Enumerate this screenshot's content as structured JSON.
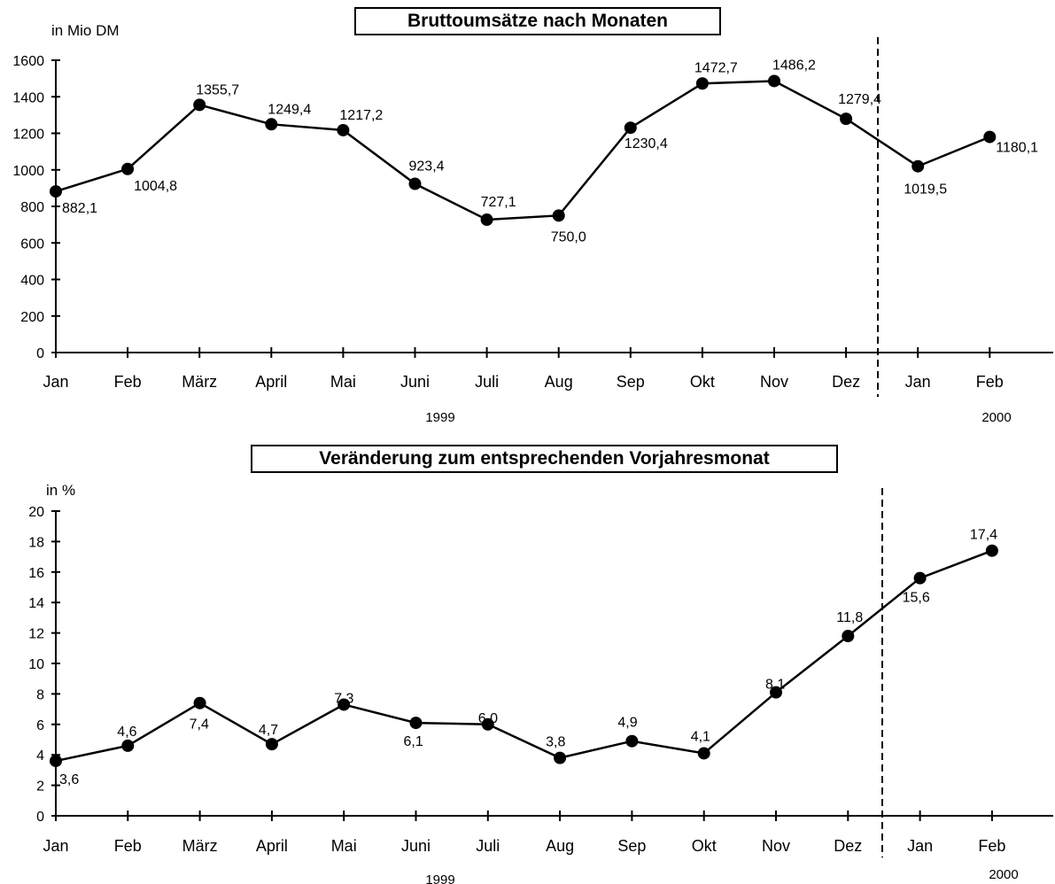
{
  "chart_data": [
    {
      "type": "line",
      "title": "Bruttoumsätze nach Monaten",
      "ylabel": "in Mio DM",
      "xlabel": "",
      "categories": [
        "Jan",
        "Feb",
        "März",
        "April",
        "Mai",
        "Juni",
        "Juli",
        "Aug",
        "Sep",
        "Okt",
        "Nov",
        "Dez",
        "Jan",
        "Feb"
      ],
      "year_labels": [
        "1999",
        "2000"
      ],
      "values": [
        882.1,
        1004.8,
        1355.7,
        1249.4,
        1217.2,
        923.4,
        727.1,
        750.0,
        1230.4,
        1472.7,
        1486.2,
        1279.4,
        1019.5,
        1180.1
      ],
      "value_labels": [
        "882,1",
        "1004,8",
        "1355,7",
        "1249,4",
        "1217,2",
        "923,4",
        "727,1",
        "750,0",
        "1230,4",
        "1472,7",
        "1486,2",
        "1279,4",
        "1019,5",
        "1180,1"
      ],
      "yticks": [
        "0",
        "200",
        "400",
        "600",
        "800",
        "1000",
        "1200",
        "1400",
        "1600"
      ],
      "ylim": [
        0,
        1600
      ],
      "grid": false,
      "legend": "none",
      "separator": "dashed line between Dez and Jan"
    },
    {
      "type": "line",
      "title": "Veränderung zum entsprechenden Vorjahresmonat",
      "ylabel": "in %",
      "xlabel": "",
      "categories": [
        "Jan",
        "Feb",
        "März",
        "April",
        "Mai",
        "Juni",
        "Juli",
        "Aug",
        "Sep",
        "Okt",
        "Nov",
        "Dez",
        "Jan",
        "Feb"
      ],
      "year_labels": [
        "1999",
        "2000"
      ],
      "values": [
        3.6,
        4.6,
        7.4,
        4.7,
        7.3,
        6.1,
        6.0,
        3.8,
        4.9,
        4.1,
        8.1,
        11.8,
        15.6,
        17.4
      ],
      "value_labels": [
        "3,6",
        "4,6",
        "7,4",
        "4,7",
        "7,3",
        "6,1",
        "6,0",
        "3,8",
        "4,9",
        "4,1",
        "8,1",
        "11,8",
        "15,6",
        "17,4"
      ],
      "yticks": [
        "0",
        "2",
        "4",
        "6",
        "8",
        "10",
        "12",
        "14",
        "16",
        "18",
        "20"
      ],
      "ylim": [
        0,
        20
      ],
      "grid": false,
      "legend": "none",
      "separator": "dashed line between Dez and Jan"
    }
  ],
  "colors": {
    "line": "#000000",
    "marker": "#000000",
    "background": "#ffffff"
  }
}
